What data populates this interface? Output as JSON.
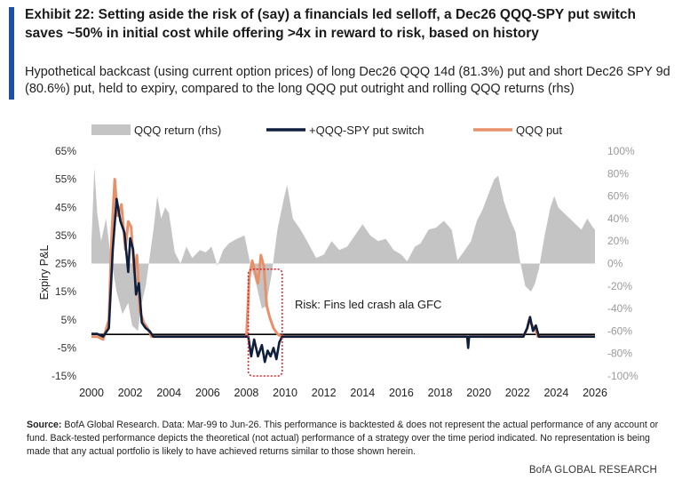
{
  "header": {
    "title": "Exhibit 22: Setting aside the risk of (say) a financials led selloff, a Dec26 QQQ-SPY put switch saves ~50% in initial cost while offering >4x in reward to risk, based on history",
    "subtitle": "Hypothetical backcast (using current option prices) of long Dec26 QQQ 14d (81.3%) put and short Dec26 SPY 9d (80.6%) put, held to expiry, compared to the long QQQ put outright and rolling QQQ returns (rhs)"
  },
  "chart_data": {
    "type": "area",
    "ylabel": "Expiry P&L",
    "x_ticks": [
      "2000",
      "2002",
      "2004",
      "2006",
      "2008",
      "2010",
      "2012",
      "2014",
      "2016",
      "2018",
      "2020",
      "2022",
      "2024",
      "2026"
    ],
    "xlim": [
      2000,
      2026
    ],
    "y_left_ticks": [
      "65%",
      "55%",
      "45%",
      "35%",
      "25%",
      "15%",
      "5%",
      "-5%",
      "-15%"
    ],
    "ylim_left": [
      -15,
      65
    ],
    "y_right_ticks": [
      "100%",
      "80%",
      "60%",
      "40%",
      "20%",
      "0%",
      "-20%",
      "-40%",
      "-60%",
      "-80%",
      "-100%"
    ],
    "ylim_right": [
      -100,
      100
    ],
    "legend_position": "top",
    "colors": {
      "qqq_return": "#c4c4c4",
      "switch": "#0e1f3d",
      "qqq_put": "#e8906a",
      "annotation_box": "#d9282f",
      "baseline": "#000000"
    },
    "series": [
      {
        "name": "QQQ return (rhs)",
        "axis": "right",
        "points": [
          [
            2000.0,
            20
          ],
          [
            2000.15,
            85
          ],
          [
            2000.3,
            45
          ],
          [
            2000.5,
            20
          ],
          [
            2000.75,
            40
          ],
          [
            2001.0,
            5
          ],
          [
            2001.3,
            -25
          ],
          [
            2001.6,
            -45
          ],
          [
            2001.9,
            -35
          ],
          [
            2002.1,
            -55
          ],
          [
            2002.4,
            -60
          ],
          [
            2002.6,
            -35
          ],
          [
            2002.8,
            -20
          ],
          [
            2003.0,
            5
          ],
          [
            2003.2,
            30
          ],
          [
            2003.4,
            60
          ],
          [
            2003.6,
            40
          ],
          [
            2003.8,
            50
          ],
          [
            2004.0,
            45
          ],
          [
            2004.3,
            10
          ],
          [
            2004.6,
            0
          ],
          [
            2004.9,
            15
          ],
          [
            2005.2,
            5
          ],
          [
            2005.6,
            12
          ],
          [
            2005.9,
            10
          ],
          [
            2006.2,
            15
          ],
          [
            2006.5,
            -2
          ],
          [
            2006.8,
            12
          ],
          [
            2007.1,
            18
          ],
          [
            2007.5,
            22
          ],
          [
            2007.9,
            25
          ],
          [
            2008.2,
            0
          ],
          [
            2008.5,
            -18
          ],
          [
            2008.8,
            -40
          ],
          [
            2009.0,
            -38
          ],
          [
            2009.3,
            -10
          ],
          [
            2009.6,
            30
          ],
          [
            2009.9,
            55
          ],
          [
            2010.1,
            70
          ],
          [
            2010.4,
            40
          ],
          [
            2010.8,
            30
          ],
          [
            2011.2,
            18
          ],
          [
            2011.6,
            5
          ],
          [
            2012.0,
            8
          ],
          [
            2012.4,
            20
          ],
          [
            2012.8,
            12
          ],
          [
            2013.2,
            15
          ],
          [
            2013.6,
            25
          ],
          [
            2014.0,
            35
          ],
          [
            2014.4,
            25
          ],
          [
            2014.8,
            20
          ],
          [
            2015.2,
            22
          ],
          [
            2015.6,
            12
          ],
          [
            2016.0,
            8
          ],
          [
            2016.3,
            2
          ],
          [
            2016.7,
            15
          ],
          [
            2017.0,
            18
          ],
          [
            2017.4,
            30
          ],
          [
            2017.8,
            32
          ],
          [
            2018.2,
            38
          ],
          [
            2018.6,
            30
          ],
          [
            2018.9,
            3
          ],
          [
            2019.2,
            10
          ],
          [
            2019.6,
            20
          ],
          [
            2019.9,
            38
          ],
          [
            2020.2,
            48
          ],
          [
            2020.5,
            62
          ],
          [
            2020.8,
            75
          ],
          [
            2021.0,
            78
          ],
          [
            2021.3,
            55
          ],
          [
            2021.6,
            40
          ],
          [
            2021.9,
            28
          ],
          [
            2022.1,
            5
          ],
          [
            2022.4,
            -20
          ],
          [
            2022.7,
            -25
          ],
          [
            2022.9,
            -18
          ],
          [
            2023.1,
            -5
          ],
          [
            2023.4,
            25
          ],
          [
            2023.7,
            50
          ],
          [
            2023.9,
            60
          ],
          [
            2024.1,
            50
          ],
          [
            2024.4,
            45
          ],
          [
            2024.7,
            40
          ],
          [
            2025.0,
            35
          ],
          [
            2025.3,
            30
          ],
          [
            2025.6,
            40
          ],
          [
            2025.9,
            32
          ],
          [
            2026.0,
            30
          ]
        ]
      },
      {
        "name": "+QQQ-SPY put switch",
        "axis": "left",
        "points": [
          [
            2000.0,
            0
          ],
          [
            2000.3,
            0
          ],
          [
            2000.6,
            -1
          ],
          [
            2000.9,
            2
          ],
          [
            2001.1,
            30
          ],
          [
            2001.3,
            48
          ],
          [
            2001.5,
            40
          ],
          [
            2001.7,
            36
          ],
          [
            2001.9,
            22
          ],
          [
            2002.0,
            34
          ],
          [
            2002.15,
            30
          ],
          [
            2002.3,
            14
          ],
          [
            2002.45,
            18
          ],
          [
            2002.6,
            4
          ],
          [
            2002.8,
            2
          ],
          [
            2003.0,
            1
          ],
          [
            2003.2,
            -1
          ],
          [
            2008.1,
            -1
          ],
          [
            2008.25,
            -8
          ],
          [
            2008.4,
            -2
          ],
          [
            2008.6,
            -8
          ],
          [
            2008.8,
            -4
          ],
          [
            2008.95,
            -10
          ],
          [
            2009.1,
            -6
          ],
          [
            2009.25,
            -8
          ],
          [
            2009.4,
            -5
          ],
          [
            2009.55,
            -9
          ],
          [
            2009.7,
            -3
          ],
          [
            2009.85,
            -1
          ],
          [
            2019.4,
            -1
          ],
          [
            2019.45,
            -5
          ],
          [
            2019.5,
            -1
          ],
          [
            2022.3,
            -1
          ],
          [
            2022.5,
            2
          ],
          [
            2022.65,
            6
          ],
          [
            2022.8,
            1
          ],
          [
            2022.95,
            3
          ],
          [
            2023.1,
            -1
          ],
          [
            2026.0,
            -1
          ]
        ]
      },
      {
        "name": "QQQ put",
        "axis": "left",
        "points": [
          [
            2000.0,
            -1
          ],
          [
            2000.3,
            -1
          ],
          [
            2000.6,
            -2
          ],
          [
            2000.9,
            5
          ],
          [
            2001.05,
            36
          ],
          [
            2001.2,
            55
          ],
          [
            2001.35,
            42
          ],
          [
            2001.55,
            46
          ],
          [
            2001.75,
            30
          ],
          [
            2001.9,
            40
          ],
          [
            2002.05,
            38
          ],
          [
            2002.2,
            22
          ],
          [
            2002.35,
            28
          ],
          [
            2002.5,
            8
          ],
          [
            2002.7,
            4
          ],
          [
            2002.9,
            2
          ],
          [
            2003.1,
            -1
          ],
          [
            2008.0,
            -1
          ],
          [
            2008.15,
            20
          ],
          [
            2008.3,
            26
          ],
          [
            2008.45,
            22
          ],
          [
            2008.6,
            18
          ],
          [
            2008.75,
            28
          ],
          [
            2008.9,
            24
          ],
          [
            2009.05,
            10
          ],
          [
            2009.2,
            6
          ],
          [
            2009.4,
            2
          ],
          [
            2009.6,
            0
          ],
          [
            2009.8,
            -1
          ],
          [
            2022.3,
            -1
          ],
          [
            2022.5,
            2
          ],
          [
            2022.6,
            5
          ],
          [
            2022.75,
            3
          ],
          [
            2022.9,
            2
          ],
          [
            2023.05,
            -1
          ],
          [
            2026.0,
            -1
          ]
        ]
      }
    ],
    "annotations": [
      {
        "text": "Risk: Fins led crash ala GFC",
        "x_range": [
          2008.1,
          2010.4
        ],
        "y_range": [
          -15,
          23
        ]
      }
    ]
  },
  "footer": {
    "source_label": "Source:",
    "source_text": " BofA Global Research. Data: Mar-99 to Jun-26. This performance is backtested & does not represent the actual performance of any account or fund. Back-tested performance depicts the theoretical (not actual) performance of a strategy over the time period indicated. No representation is being made that any actual portfolio is likely to have achieved returns similar to those shown herein.",
    "brand": "BofA GLOBAL RESEARCH"
  }
}
